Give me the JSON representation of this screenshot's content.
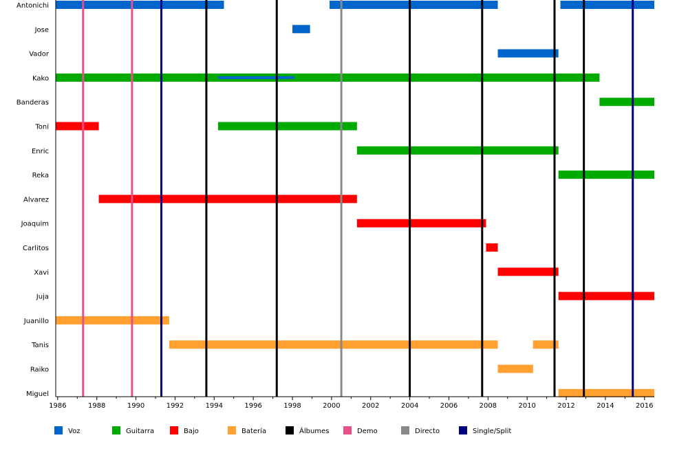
{
  "chart_data": {
    "type": "timeline",
    "xlim": [
      1985.9,
      2016.5
    ],
    "members": [
      "Antonichi",
      "Jose",
      "Vador",
      "Kako",
      "Banderas",
      "Toni",
      "Enric",
      "Reka",
      "Alvarez",
      "Joaquim",
      "Carlitos",
      "Xavi",
      "Juja",
      "Juanillo",
      "Tanis",
      "Raiko",
      "Miguel"
    ],
    "roles": [
      {
        "key": "voz",
        "label": "Voz",
        "color": "#0066cc"
      },
      {
        "key": "guitarra",
        "label": "Guitarra",
        "color": "#00aa00"
      },
      {
        "key": "bajo",
        "label": "Bajo",
        "color": "#ff0000"
      },
      {
        "key": "bateria",
        "label": "Batería",
        "color": "#ffa030"
      }
    ],
    "release_types": [
      {
        "key": "albumes",
        "label": "Álbumes",
        "color": "#000000"
      },
      {
        "key": "demo",
        "label": "Demo",
        "color": "#e8508a"
      },
      {
        "key": "directo",
        "label": "Directo",
        "color": "#888888"
      },
      {
        "key": "single",
        "label": "Single/Split",
        "color": "#000080"
      }
    ],
    "bars": [
      {
        "member": "Antonichi",
        "role": "voz",
        "start": 1985.9,
        "end": 1994.5
      },
      {
        "member": "Antonichi",
        "role": "voz",
        "start": 1999.9,
        "end": 2008.5
      },
      {
        "member": "Antonichi",
        "role": "voz",
        "start": 2011.7,
        "end": 2016.5
      },
      {
        "member": "Jose",
        "role": "voz",
        "start": 1998.0,
        "end": 1998.9
      },
      {
        "member": "Vador",
        "role": "voz",
        "start": 2008.5,
        "end": 2011.6
      },
      {
        "member": "Kako",
        "role": "guitarra",
        "start": 1985.9,
        "end": 2013.7
      },
      {
        "member": "Kako",
        "role": "voz",
        "start": 1994.2,
        "end": 1998.1,
        "thin": true
      },
      {
        "member": "Banderas",
        "role": "guitarra",
        "start": 2013.7,
        "end": 2016.5
      },
      {
        "member": "Toni",
        "role": "bajo",
        "start": 1985.9,
        "end": 1988.1
      },
      {
        "member": "Toni",
        "role": "guitarra",
        "start": 1994.2,
        "end": 2001.3
      },
      {
        "member": "Enric",
        "role": "guitarra",
        "start": 2001.3,
        "end": 2011.6
      },
      {
        "member": "Reka",
        "role": "guitarra",
        "start": 2011.6,
        "end": 2016.5
      },
      {
        "member": "Alvarez",
        "role": "bajo",
        "start": 1988.1,
        "end": 2001.3
      },
      {
        "member": "Joaquim",
        "role": "bajo",
        "start": 2001.3,
        "end": 2007.9
      },
      {
        "member": "Carlitos",
        "role": "bajo",
        "start": 2007.9,
        "end": 2008.5
      },
      {
        "member": "Xavi",
        "role": "bajo",
        "start": 2008.5,
        "end": 2011.6
      },
      {
        "member": "Juja",
        "role": "bajo",
        "start": 2011.6,
        "end": 2016.5
      },
      {
        "member": "Juanillo",
        "role": "bateria",
        "start": 1985.9,
        "end": 1991.7
      },
      {
        "member": "Tanis",
        "role": "bateria",
        "start": 1991.7,
        "end": 2008.5
      },
      {
        "member": "Tanis",
        "role": "bateria",
        "start": 2010.3,
        "end": 2011.6
      },
      {
        "member": "Raiko",
        "role": "bateria",
        "start": 2008.5,
        "end": 2010.3
      },
      {
        "member": "Miguel",
        "role": "bateria",
        "start": 2011.6,
        "end": 2016.5
      }
    ],
    "releases": [
      {
        "year": 1987.3,
        "type": "demo"
      },
      {
        "year": 1989.8,
        "type": "demo"
      },
      {
        "year": 1991.3,
        "type": "single"
      },
      {
        "year": 1993.6,
        "type": "albumes"
      },
      {
        "year": 1997.2,
        "type": "albumes"
      },
      {
        "year": 2000.5,
        "type": "directo"
      },
      {
        "year": 2004.0,
        "type": "albumes"
      },
      {
        "year": 2007.7,
        "type": "albumes"
      },
      {
        "year": 2011.4,
        "type": "albumes"
      },
      {
        "year": 2012.9,
        "type": "albumes"
      },
      {
        "year": 2015.4,
        "type": "single"
      }
    ],
    "ticks": [
      "1986",
      "1988",
      "1990",
      "1992",
      "1994",
      "1996",
      "1998",
      "2000",
      "2002",
      "2004",
      "2006",
      "2008",
      "2010",
      "2012",
      "2014",
      "2016"
    ]
  }
}
